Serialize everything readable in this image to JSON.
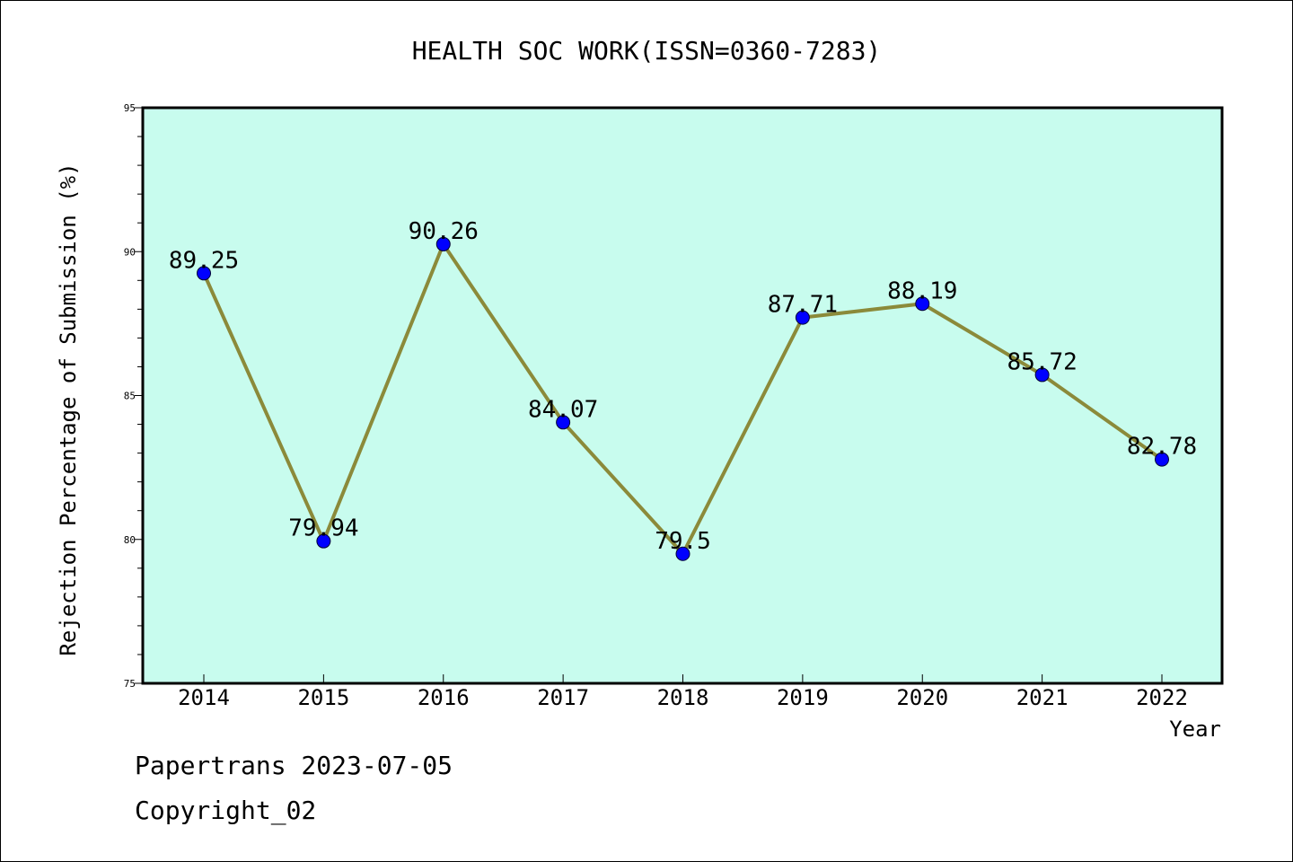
{
  "chart_data": {
    "type": "line",
    "title": "HEALTH SOC WORK(ISSN=0360-7283)",
    "xlabel": "Year",
    "ylabel": "Rejection Percentage of Submission (%)",
    "categories": [
      "2014",
      "2015",
      "2016",
      "2017",
      "2018",
      "2019",
      "2020",
      "2021",
      "2022"
    ],
    "series": [
      {
        "values": [
          89.25,
          79.94,
          90.26,
          84.07,
          79.5,
          87.71,
          88.19,
          85.72,
          82.78
        ],
        "labels": [
          "89.25",
          "79.94",
          "90.26",
          "84.07",
          "79.5",
          "87.71",
          "88.19",
          "85.72",
          "82.78"
        ]
      }
    ],
    "ylim": [
      75,
      95
    ],
    "yticks": [
      "75",
      "80",
      "85",
      "90",
      "95"
    ],
    "grid": false,
    "colors": {
      "plot_background": "#c8fcee",
      "line": "#8b8a3a",
      "marker": "#0000ff"
    }
  },
  "footer": {
    "line1": "Papertrans 2023-07-05",
    "line2": "Copyright_02"
  }
}
